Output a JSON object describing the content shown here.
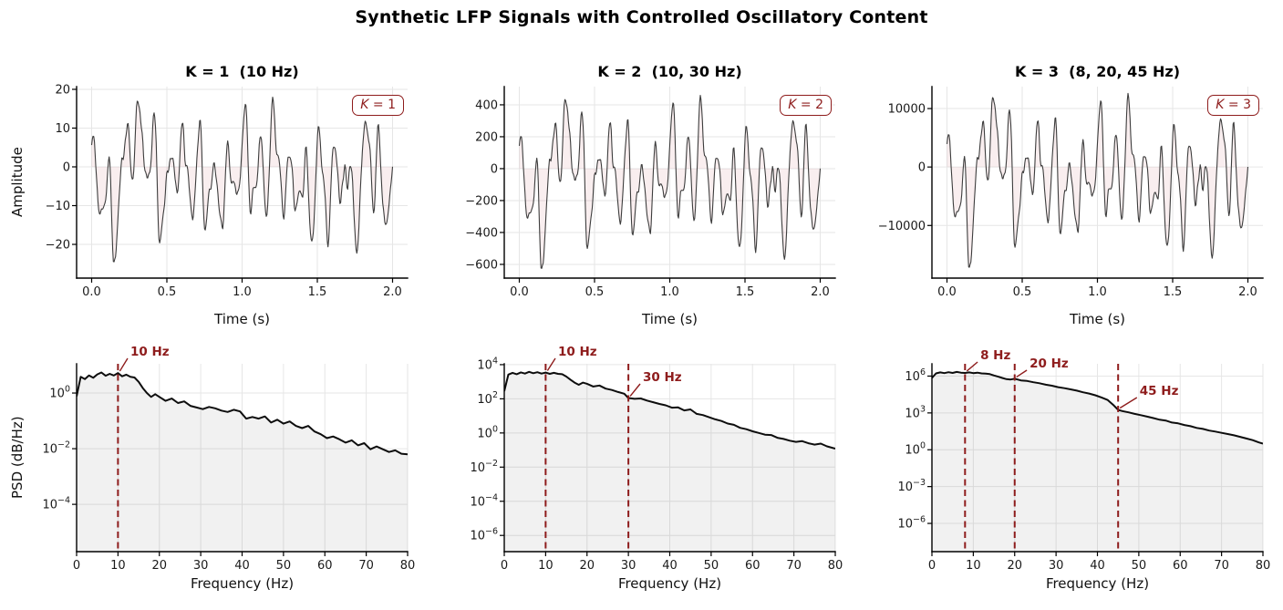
{
  "suptitle": "Synthetic LFP Signals with Controlled Oscillatory Content",
  "palette": {
    "annotation_red": "#8E1C1C",
    "signal_line": "#3d3d3d",
    "signal_fill": "rgba(197,90,95,0.10)",
    "psd_line": "#0d0d0d",
    "psd_fill": "rgba(0,0,0,0.055)",
    "grid": "#e6e6e6",
    "spine": "#000000",
    "tick_text": "#1a1a1a"
  },
  "waveform": {
    "seed": 11,
    "n": 430,
    "duration": 2,
    "peak_max": 18,
    "peak_min": -24.5,
    "components": [
      [
        10,
        6.5,
        0.7
      ],
      [
        3.1,
        4.2,
        2.1
      ],
      [
        6.3,
        3.0,
        4.4
      ],
      [
        16.8,
        2.6,
        1.2
      ],
      [
        23,
        1.2,
        3.3
      ],
      [
        1.3,
        2.2,
        5.1
      ],
      [
        12.7,
        1.6,
        0.2
      ]
    ],
    "events": [
      [
        0.78,
        6,
        0.002
      ],
      [
        0.9,
        -7,
        0.002
      ],
      [
        0.33,
        4,
        0.0015
      ],
      [
        1.12,
        4,
        0.0015
      ],
      [
        1.31,
        -5,
        0.002
      ],
      [
        1.43,
        5,
        0.0015
      ],
      [
        1.58,
        -4,
        0.002
      ],
      [
        1.95,
        -8,
        0.004
      ],
      [
        0.12,
        -4,
        0.002
      ]
    ],
    "noise_amp": 2.6
  },
  "chart_data": [
    {
      "id": "ts-k1",
      "type": "line",
      "kind": "ts",
      "title": "K = 1  (10 Hz)",
      "peak_freqs_hz": [
        10
      ],
      "legend_var": "K",
      "legend_eq": " = 1",
      "xlabel": "Time (s)",
      "ylabel": "Amplitude",
      "xlim": [
        -0.1,
        2.1
      ],
      "ylim": [
        -28.7,
        20.7
      ],
      "scale": 1,
      "xticks": [
        {
          "v": 0,
          "l": "0.0"
        },
        {
          "v": 0.5,
          "l": "0.5"
        },
        {
          "v": 1,
          "l": "1.0"
        },
        {
          "v": 1.5,
          "l": "1.5"
        },
        {
          "v": 2,
          "l": "2.0"
        }
      ],
      "yticks": [
        {
          "v": 20,
          "l": "20"
        },
        {
          "v": 10,
          "l": "10"
        },
        {
          "v": 0,
          "l": "0"
        },
        {
          "v": -10,
          "l": "−10"
        },
        {
          "v": -20,
          "l": "−20"
        }
      ]
    },
    {
      "id": "ts-k2",
      "type": "line",
      "kind": "ts",
      "title": "K = 2  (10, 30 Hz)",
      "peak_freqs_hz": [
        10,
        30
      ],
      "legend_var": "K",
      "legend_eq": " = 2",
      "xlabel": "Time (s)",
      "ylabel": "",
      "xlim": [
        -0.1,
        2.1
      ],
      "ylim": [
        -686,
        514
      ],
      "scale": 25.5,
      "xticks": [
        {
          "v": 0,
          "l": "0.0"
        },
        {
          "v": 0.5,
          "l": "0.5"
        },
        {
          "v": 1,
          "l": "1.0"
        },
        {
          "v": 1.5,
          "l": "1.5"
        },
        {
          "v": 2,
          "l": "2.0"
        }
      ],
      "yticks": [
        {
          "v": 400,
          "l": "400"
        },
        {
          "v": 200,
          "l": "200"
        },
        {
          "v": 0,
          "l": "0"
        },
        {
          "v": -200,
          "l": "−200"
        },
        {
          "v": -400,
          "l": "−400"
        },
        {
          "v": -600,
          "l": "−600"
        }
      ]
    },
    {
      "id": "ts-k3",
      "type": "line",
      "kind": "ts",
      "title": "K = 3  (8, 20, 45 Hz)",
      "peak_freqs_hz": [
        8,
        20,
        45
      ],
      "legend_var": "K",
      "legend_eq": " = 3",
      "xlabel": "Time (s)",
      "ylabel": "",
      "xlim": [
        -0.1,
        2.1
      ],
      "ylim": [
        -19000,
        13750
      ],
      "scale": 700,
      "xticks": [
        {
          "v": 0,
          "l": "0.0"
        },
        {
          "v": 0.5,
          "l": "0.5"
        },
        {
          "v": 1,
          "l": "1.0"
        },
        {
          "v": 1.5,
          "l": "1.5"
        },
        {
          "v": 2,
          "l": "2.0"
        }
      ],
      "yticks": [
        {
          "v": 10000,
          "l": "10000"
        },
        {
          "v": 0,
          "l": "0"
        },
        {
          "v": -10000,
          "l": "−10000"
        }
      ]
    },
    {
      "id": "psd-k1",
      "type": "area",
      "kind": "psd",
      "xlabel": "Frequency (Hz)",
      "ylabel": "PSD (dB/Hz)",
      "xlim": [
        0,
        80
      ],
      "ylog_top": 1.05,
      "ylog_bottom": -5.7,
      "xticks": [
        {
          "v": 0,
          "l": "0"
        },
        {
          "v": 10,
          "l": "10"
        },
        {
          "v": 20,
          "l": "20"
        },
        {
          "v": 30,
          "l": "30"
        },
        {
          "v": 40,
          "l": "40"
        },
        {
          "v": 50,
          "l": "50"
        },
        {
          "v": 60,
          "l": "60"
        },
        {
          "v": 70,
          "l": "70"
        },
        {
          "v": 80,
          "l": "80"
        }
      ],
      "yticks_exp": [
        {
          "e": 0,
          "l": "0"
        },
        {
          "e": -2,
          "l": "−2"
        },
        {
          "e": -4,
          "l": "−4"
        }
      ],
      "markers": [
        {
          "f": 10,
          "label": "10 Hz",
          "tx": 13,
          "ty": -9
        }
      ],
      "points": [
        [
          0,
          -0.12
        ],
        [
          1,
          0.58
        ],
        [
          2,
          0.5
        ],
        [
          3,
          0.63
        ],
        [
          4,
          0.55
        ],
        [
          5,
          0.67
        ],
        [
          6,
          0.74
        ],
        [
          7,
          0.62
        ],
        [
          8,
          0.69
        ],
        [
          9,
          0.63
        ],
        [
          10,
          0.72
        ],
        [
          11,
          0.6
        ],
        [
          12,
          0.66
        ],
        [
          13,
          0.58
        ],
        [
          14,
          0.56
        ],
        [
          15,
          0.4
        ],
        [
          16,
          0.18
        ],
        [
          17,
          0
        ],
        [
          18,
          -0.14
        ],
        [
          19,
          -0.04
        ],
        [
          20,
          -0.14
        ],
        [
          21.5,
          -0.28
        ],
        [
          23,
          -0.2
        ],
        [
          24.5,
          -0.36
        ],
        [
          26,
          -0.3
        ],
        [
          27.5,
          -0.46
        ],
        [
          29,
          -0.52
        ],
        [
          30.5,
          -0.58
        ],
        [
          32,
          -0.5
        ],
        [
          33.5,
          -0.55
        ],
        [
          35,
          -0.63
        ],
        [
          36.5,
          -0.68
        ],
        [
          38,
          -0.6
        ],
        [
          39.5,
          -0.66
        ],
        [
          41,
          -0.92
        ],
        [
          42.5,
          -0.86
        ],
        [
          44,
          -0.92
        ],
        [
          45.5,
          -0.84
        ],
        [
          47,
          -1.06
        ],
        [
          48.5,
          -0.96
        ],
        [
          50,
          -1.1
        ],
        [
          51.5,
          -1.02
        ],
        [
          53,
          -1.18
        ],
        [
          54.5,
          -1.26
        ],
        [
          56,
          -1.18
        ],
        [
          57.5,
          -1.38
        ],
        [
          59,
          -1.48
        ],
        [
          60.5,
          -1.62
        ],
        [
          62,
          -1.56
        ],
        [
          63.5,
          -1.66
        ],
        [
          65,
          -1.78
        ],
        [
          66.5,
          -1.7
        ],
        [
          68,
          -1.88
        ],
        [
          69.5,
          -1.8
        ],
        [
          71,
          -2.02
        ],
        [
          72.5,
          -1.92
        ],
        [
          74,
          -2.02
        ],
        [
          75.5,
          -2.12
        ],
        [
          77,
          -2.06
        ],
        [
          78.5,
          -2.18
        ],
        [
          80,
          -2.2
        ]
      ]
    },
    {
      "id": "psd-k2",
      "type": "area",
      "kind": "psd",
      "xlabel": "Frequency (Hz)",
      "ylabel": "",
      "xlim": [
        0,
        80
      ],
      "ylog_top": 4.05,
      "ylog_bottom": -6.95,
      "xticks": [
        {
          "v": 0,
          "l": "0"
        },
        {
          "v": 10,
          "l": "10"
        },
        {
          "v": 20,
          "l": "20"
        },
        {
          "v": 30,
          "l": "30"
        },
        {
          "v": 40,
          "l": "40"
        },
        {
          "v": 50,
          "l": "50"
        },
        {
          "v": 60,
          "l": "60"
        },
        {
          "v": 70,
          "l": "70"
        },
        {
          "v": 80,
          "l": "80"
        }
      ],
      "yticks_exp": [
        {
          "e": 4,
          "l": "4"
        },
        {
          "e": 2,
          "l": "2"
        },
        {
          "e": 0,
          "l": "0"
        },
        {
          "e": -2,
          "l": "−2"
        },
        {
          "e": -4,
          "l": "−4"
        },
        {
          "e": -6,
          "l": "−6"
        }
      ],
      "markers": [
        {
          "f": 10,
          "label": "10 Hz",
          "tx": 13,
          "ty": -9
        },
        {
          "f": 30,
          "label": "30 Hz",
          "tx": 33.5,
          "ty": 19
        }
      ],
      "points": [
        [
          0,
          2.45
        ],
        [
          1,
          3.42
        ],
        [
          2,
          3.52
        ],
        [
          3,
          3.44
        ],
        [
          4,
          3.55
        ],
        [
          5,
          3.48
        ],
        [
          6,
          3.58
        ],
        [
          7,
          3.5
        ],
        [
          8,
          3.56
        ],
        [
          9,
          3.48
        ],
        [
          10,
          3.54
        ],
        [
          11,
          3.46
        ],
        [
          12,
          3.52
        ],
        [
          13,
          3.46
        ],
        [
          14,
          3.44
        ],
        [
          15,
          3.3
        ],
        [
          16,
          3.12
        ],
        [
          17,
          2.95
        ],
        [
          18,
          2.82
        ],
        [
          19,
          2.95
        ],
        [
          20,
          2.88
        ],
        [
          21.5,
          2.72
        ],
        [
          23,
          2.78
        ],
        [
          24.5,
          2.6
        ],
        [
          26,
          2.52
        ],
        [
          27.5,
          2.4
        ],
        [
          29,
          2.3
        ],
        [
          30,
          2.05
        ],
        [
          31.5,
          2
        ],
        [
          33,
          2.02
        ],
        [
          34.5,
          1.9
        ],
        [
          36,
          1.8
        ],
        [
          37.5,
          1.7
        ],
        [
          39,
          1.62
        ],
        [
          40.5,
          1.48
        ],
        [
          42,
          1.5
        ],
        [
          43.5,
          1.32
        ],
        [
          45,
          1.38
        ],
        [
          46.5,
          1.12
        ],
        [
          48,
          1.05
        ],
        [
          49.5,
          0.92
        ],
        [
          51,
          0.8
        ],
        [
          52.5,
          0.7
        ],
        [
          54,
          0.55
        ],
        [
          55.5,
          0.48
        ],
        [
          57,
          0.3
        ],
        [
          58.5,
          0.22
        ],
        [
          60,
          0.1
        ],
        [
          61.5,
          0
        ],
        [
          63,
          -0.1
        ],
        [
          64.5,
          -0.12
        ],
        [
          66,
          -0.28
        ],
        [
          67.5,
          -0.35
        ],
        [
          69,
          -0.45
        ],
        [
          70.5,
          -0.52
        ],
        [
          72,
          -0.48
        ],
        [
          73.5,
          -0.6
        ],
        [
          75,
          -0.68
        ],
        [
          76.5,
          -0.62
        ],
        [
          78,
          -0.78
        ],
        [
          80,
          -0.92
        ]
      ]
    },
    {
      "id": "psd-k3",
      "type": "area",
      "kind": "psd",
      "xlabel": "Frequency (Hz)",
      "ylabel": "",
      "xlim": [
        0,
        80
      ],
      "ylog_top": 7.0,
      "ylog_bottom": -8.3,
      "xticks": [
        {
          "v": 0,
          "l": "0"
        },
        {
          "v": 10,
          "l": "10"
        },
        {
          "v": 20,
          "l": "20"
        },
        {
          "v": 30,
          "l": "30"
        },
        {
          "v": 40,
          "l": "40"
        },
        {
          "v": 50,
          "l": "50"
        },
        {
          "v": 60,
          "l": "60"
        },
        {
          "v": 70,
          "l": "70"
        },
        {
          "v": 80,
          "l": "80"
        }
      ],
      "yticks_exp": [
        {
          "e": 6,
          "l": "6"
        },
        {
          "e": 3,
          "l": "3"
        },
        {
          "e": 0,
          "l": "0"
        },
        {
          "e": -3,
          "l": "−3"
        },
        {
          "e": -6,
          "l": "−6"
        }
      ],
      "markers": [
        {
          "f": 8,
          "label": "8 Hz",
          "tx": 11.7,
          "ty": -5
        },
        {
          "f": 20,
          "label": "20 Hz",
          "tx": 23.6,
          "ty": 4
        },
        {
          "f": 45,
          "label": "45 Hz",
          "tx": 50.2,
          "ty": 34
        }
      ],
      "points": [
        [
          0,
          5.85
        ],
        [
          1,
          6.22
        ],
        [
          2,
          6.3
        ],
        [
          3,
          6.24
        ],
        [
          4,
          6.32
        ],
        [
          5,
          6.26
        ],
        [
          6,
          6.34
        ],
        [
          7,
          6.28
        ],
        [
          8,
          6.26
        ],
        [
          9,
          6.3
        ],
        [
          10,
          6.24
        ],
        [
          11,
          6.28
        ],
        [
          12,
          6.22
        ],
        [
          13,
          6.2
        ],
        [
          14,
          6.16
        ],
        [
          15,
          6.05
        ],
        [
          16,
          5.95
        ],
        [
          17,
          5.85
        ],
        [
          18,
          5.75
        ],
        [
          19,
          5.72
        ],
        [
          20,
          5.78
        ],
        [
          21.5,
          5.65
        ],
        [
          23,
          5.6
        ],
        [
          24.5,
          5.5
        ],
        [
          26,
          5.42
        ],
        [
          27.5,
          5.3
        ],
        [
          29,
          5.22
        ],
        [
          30.5,
          5.1
        ],
        [
          32,
          5.02
        ],
        [
          33.5,
          4.92
        ],
        [
          35,
          4.82
        ],
        [
          36.5,
          4.68
        ],
        [
          38,
          4.58
        ],
        [
          39.5,
          4.44
        ],
        [
          41,
          4.26
        ],
        [
          42.5,
          4.05
        ],
        [
          44,
          3.6
        ],
        [
          45,
          3.25
        ],
        [
          46,
          3.15
        ],
        [
          47.5,
          3.05
        ],
        [
          49,
          2.92
        ],
        [
          50.5,
          2.82
        ],
        [
          52,
          2.7
        ],
        [
          53.5,
          2.58
        ],
        [
          55,
          2.45
        ],
        [
          56.5,
          2.38
        ],
        [
          58,
          2.22
        ],
        [
          59.5,
          2.15
        ],
        [
          61,
          2.02
        ],
        [
          62.5,
          1.92
        ],
        [
          64,
          1.78
        ],
        [
          65.5,
          1.7
        ],
        [
          67,
          1.56
        ],
        [
          68.5,
          1.48
        ],
        [
          70,
          1.38
        ],
        [
          71.5,
          1.28
        ],
        [
          73,
          1.18
        ],
        [
          74.5,
          1.05
        ],
        [
          76,
          0.92
        ],
        [
          77.5,
          0.78
        ],
        [
          79,
          0.6
        ],
        [
          80,
          0.5
        ]
      ]
    }
  ]
}
